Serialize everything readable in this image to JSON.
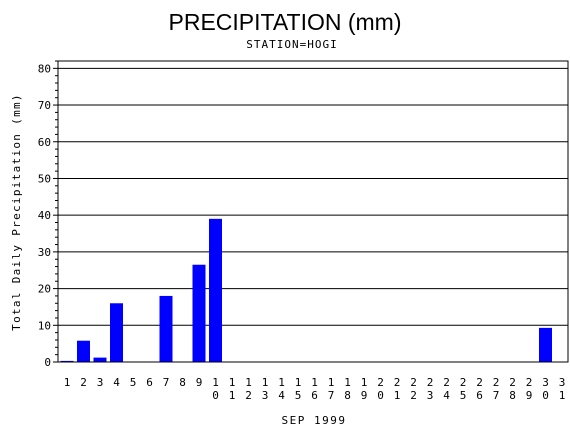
{
  "chart_data": {
    "type": "bar",
    "title": "PRECIPITATION (mm)",
    "subtitle": "STATION=HOGI",
    "xlabel": "SEP 1999",
    "ylabel": "Total Daily Precipitation (mm)",
    "ylim": [
      0,
      82
    ],
    "yticks": [
      0,
      10,
      20,
      30,
      40,
      50,
      60,
      70,
      80
    ],
    "grid": true,
    "bar_color": "#0000ff",
    "categories": [
      "1",
      "2",
      "3",
      "4",
      "5",
      "6",
      "7",
      "8",
      "9",
      "10",
      "11",
      "12",
      "13",
      "14",
      "15",
      "16",
      "17",
      "18",
      "19",
      "20",
      "21",
      "22",
      "23",
      "24",
      "25",
      "26",
      "27",
      "28",
      "29",
      "30",
      "31"
    ],
    "values": [
      0.3,
      5.8,
      1.2,
      16,
      0,
      0,
      18,
      0,
      26.5,
      39,
      0,
      0,
      0,
      0,
      0,
      0,
      0,
      0,
      0,
      0,
      0,
      0,
      0,
      0,
      0,
      0,
      0,
      0,
      0,
      9.3,
      0
    ]
  }
}
